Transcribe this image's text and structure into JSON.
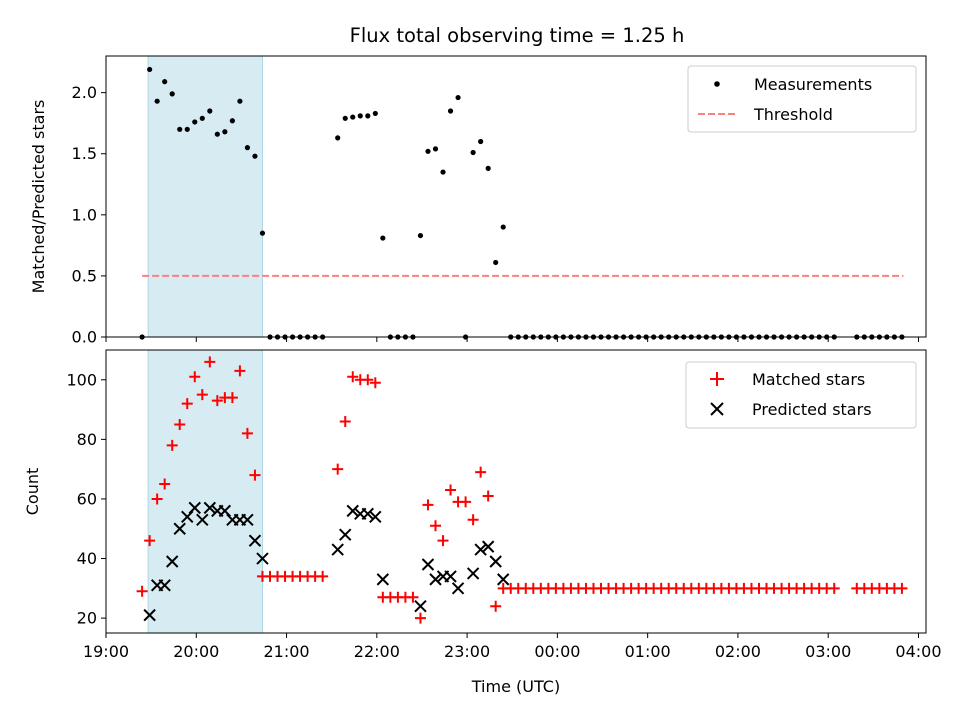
{
  "title": "Flux total observing time = 1.25 h",
  "colors": {
    "measurement": "#000000",
    "threshold": "#ff7f7f",
    "matched": "#ff0000",
    "predicted": "#000000",
    "shade": "#add8e6"
  },
  "chart_data": [
    {
      "type": "scatter",
      "panel": "top",
      "ylabel": "Matched/Predicted stars",
      "ylim": [
        0,
        2.3
      ],
      "yticks": [
        "0.0",
        "0.5",
        "1.0",
        "1.5",
        "2.0"
      ],
      "xlim": [
        "19:00",
        "04:05"
      ],
      "legend": {
        "placement": "top-right",
        "entries": [
          "Measurements",
          "Threshold"
        ]
      },
      "shaded_interval": [
        "19:28",
        "20:44"
      ],
      "threshold": {
        "name": "Threshold",
        "value": 0.5,
        "x_range": [
          "19:24",
          "03:50"
        ]
      },
      "series": [
        {
          "name": "Measurements",
          "points": [
            [
              "19:24",
              0.0
            ],
            [
              "19:29",
              2.19
            ],
            [
              "19:34",
              1.93
            ],
            [
              "19:39",
              2.09
            ],
            [
              "19:44",
              1.99
            ],
            [
              "19:49",
              1.7
            ],
            [
              "19:54",
              1.7
            ],
            [
              "19:59",
              1.76
            ],
            [
              "20:04",
              1.79
            ],
            [
              "20:09",
              1.85
            ],
            [
              "20:14",
              1.66
            ],
            [
              "20:19",
              1.68
            ],
            [
              "20:24",
              1.77
            ],
            [
              "20:29",
              1.93
            ],
            [
              "20:34",
              1.55
            ],
            [
              "20:39",
              1.48
            ],
            [
              "20:44",
              0.85
            ],
            [
              "20:49",
              0.0
            ],
            [
              "20:54",
              0.0
            ],
            [
              "20:59",
              0.0
            ],
            [
              "21:04",
              0.0
            ],
            [
              "21:09",
              0.0
            ],
            [
              "21:14",
              0.0
            ],
            [
              "21:19",
              0.0
            ],
            [
              "21:24",
              0.0
            ],
            [
              "21:34",
              1.63
            ],
            [
              "21:39",
              1.79
            ],
            [
              "21:44",
              1.8
            ],
            [
              "21:49",
              1.81
            ],
            [
              "21:54",
              1.81
            ],
            [
              "21:59",
              1.83
            ],
            [
              "22:04",
              0.81
            ],
            [
              "22:09",
              0.0
            ],
            [
              "22:14",
              0.0
            ],
            [
              "22:19",
              0.0
            ],
            [
              "22:24",
              0.0
            ],
            [
              "22:29",
              0.83
            ],
            [
              "22:34",
              1.52
            ],
            [
              "22:39",
              1.54
            ],
            [
              "22:44",
              1.35
            ],
            [
              "22:49",
              1.85
            ],
            [
              "22:54",
              1.96
            ],
            [
              "22:59",
              0.0
            ],
            [
              "23:04",
              1.51
            ],
            [
              "23:09",
              1.6
            ],
            [
              "23:14",
              1.38
            ],
            [
              "23:19",
              0.61
            ],
            [
              "23:24",
              0.9
            ],
            [
              "23:29",
              0.0
            ],
            [
              "23:34",
              0.0
            ],
            [
              "23:39",
              0.0
            ],
            [
              "23:44",
              0.0
            ],
            [
              "23:49",
              0.0
            ],
            [
              "23:54",
              0.0
            ],
            [
              "23:59",
              0.0
            ],
            [
              "00:04",
              0.0
            ],
            [
              "00:09",
              0.0
            ],
            [
              "00:14",
              0.0
            ],
            [
              "00:19",
              0.0
            ],
            [
              "00:24",
              0.0
            ],
            [
              "00:29",
              0.0
            ],
            [
              "00:34",
              0.0
            ],
            [
              "00:39",
              0.0
            ],
            [
              "00:44",
              0.0
            ],
            [
              "00:49",
              0.0
            ],
            [
              "00:54",
              0.0
            ],
            [
              "00:59",
              0.0
            ],
            [
              "01:04",
              0.0
            ],
            [
              "01:09",
              0.0
            ],
            [
              "01:14",
              0.0
            ],
            [
              "01:19",
              0.0
            ],
            [
              "01:24",
              0.0
            ],
            [
              "01:29",
              0.0
            ],
            [
              "01:34",
              0.0
            ],
            [
              "01:39",
              0.0
            ],
            [
              "01:44",
              0.0
            ],
            [
              "01:49",
              0.0
            ],
            [
              "01:54",
              0.0
            ],
            [
              "01:59",
              0.0
            ],
            [
              "02:04",
              0.0
            ],
            [
              "02:09",
              0.0
            ],
            [
              "02:14",
              0.0
            ],
            [
              "02:19",
              0.0
            ],
            [
              "02:24",
              0.0
            ],
            [
              "02:29",
              0.0
            ],
            [
              "02:34",
              0.0
            ],
            [
              "02:39",
              0.0
            ],
            [
              "02:44",
              0.0
            ],
            [
              "02:49",
              0.0
            ],
            [
              "02:54",
              0.0
            ],
            [
              "02:59",
              0.0
            ],
            [
              "03:04",
              0.0
            ],
            [
              "03:19",
              0.0
            ],
            [
              "03:24",
              0.0
            ],
            [
              "03:29",
              0.0
            ],
            [
              "03:34",
              0.0
            ],
            [
              "03:39",
              0.0
            ],
            [
              "03:44",
              0.0
            ],
            [
              "03:49",
              0.0
            ]
          ]
        }
      ]
    },
    {
      "type": "scatter",
      "panel": "bottom",
      "ylabel": "Count",
      "xlabel": "Time (UTC)",
      "ylim": [
        15,
        110
      ],
      "yticks": [
        "20",
        "40",
        "60",
        "80",
        "100"
      ],
      "xlim": [
        "19:00",
        "04:05"
      ],
      "xticks": [
        "19:00",
        "20:00",
        "21:00",
        "22:00",
        "23:00",
        "00:00",
        "01:00",
        "02:00",
        "03:00",
        "04:00"
      ],
      "legend": {
        "placement": "top-right",
        "entries": [
          "Matched stars",
          "Predicted stars"
        ]
      },
      "shaded_interval": [
        "19:28",
        "20:44"
      ],
      "series": [
        {
          "name": "Matched stars",
          "marker": "plus",
          "points": [
            [
              "19:24",
              29
            ],
            [
              "19:29",
              46
            ],
            [
              "19:34",
              60
            ],
            [
              "19:39",
              65
            ],
            [
              "19:44",
              78
            ],
            [
              "19:49",
              85
            ],
            [
              "19:54",
              92
            ],
            [
              "19:59",
              101
            ],
            [
              "20:04",
              95
            ],
            [
              "20:09",
              106
            ],
            [
              "20:14",
              93
            ],
            [
              "20:19",
              94
            ],
            [
              "20:24",
              94
            ],
            [
              "20:29",
              103
            ],
            [
              "20:34",
              82
            ],
            [
              "20:39",
              68
            ],
            [
              "20:44",
              34
            ],
            [
              "20:49",
              34
            ],
            [
              "20:54",
              34
            ],
            [
              "20:59",
              34
            ],
            [
              "21:04",
              34
            ],
            [
              "21:09",
              34
            ],
            [
              "21:14",
              34
            ],
            [
              "21:19",
              34
            ],
            [
              "21:24",
              34
            ],
            [
              "21:34",
              70
            ],
            [
              "21:39",
              86
            ],
            [
              "21:44",
              101
            ],
            [
              "21:49",
              100
            ],
            [
              "21:54",
              100
            ],
            [
              "21:59",
              99
            ],
            [
              "22:04",
              27
            ],
            [
              "22:09",
              27
            ],
            [
              "22:14",
              27
            ],
            [
              "22:19",
              27
            ],
            [
              "22:24",
              27
            ],
            [
              "22:29",
              20
            ],
            [
              "22:34",
              58
            ],
            [
              "22:39",
              51
            ],
            [
              "22:44",
              46
            ],
            [
              "22:49",
              63
            ],
            [
              "22:54",
              59
            ],
            [
              "22:59",
              59
            ],
            [
              "23:04",
              53
            ],
            [
              "23:09",
              69
            ],
            [
              "23:14",
              61
            ],
            [
              "23:19",
              24
            ],
            [
              "23:24",
              30
            ],
            [
              "23:29",
              30
            ],
            [
              "23:34",
              30
            ],
            [
              "23:39",
              30
            ],
            [
              "23:44",
              30
            ],
            [
              "23:49",
              30
            ],
            [
              "23:54",
              30
            ],
            [
              "23:59",
              30
            ],
            [
              "00:04",
              30
            ],
            [
              "00:09",
              30
            ],
            [
              "00:14",
              30
            ],
            [
              "00:19",
              30
            ],
            [
              "00:24",
              30
            ],
            [
              "00:29",
              30
            ],
            [
              "00:34",
              30
            ],
            [
              "00:39",
              30
            ],
            [
              "00:44",
              30
            ],
            [
              "00:49",
              30
            ],
            [
              "00:54",
              30
            ],
            [
              "00:59",
              30
            ],
            [
              "01:04",
              30
            ],
            [
              "01:09",
              30
            ],
            [
              "01:14",
              30
            ],
            [
              "01:19",
              30
            ],
            [
              "01:24",
              30
            ],
            [
              "01:29",
              30
            ],
            [
              "01:34",
              30
            ],
            [
              "01:39",
              30
            ],
            [
              "01:44",
              30
            ],
            [
              "01:49",
              30
            ],
            [
              "01:54",
              30
            ],
            [
              "01:59",
              30
            ],
            [
              "02:04",
              30
            ],
            [
              "02:09",
              30
            ],
            [
              "02:14",
              30
            ],
            [
              "02:19",
              30
            ],
            [
              "02:24",
              30
            ],
            [
              "02:29",
              30
            ],
            [
              "02:34",
              30
            ],
            [
              "02:39",
              30
            ],
            [
              "02:44",
              30
            ],
            [
              "02:49",
              30
            ],
            [
              "02:54",
              30
            ],
            [
              "02:59",
              30
            ],
            [
              "03:04",
              30
            ],
            [
              "03:19",
              30
            ],
            [
              "03:24",
              30
            ],
            [
              "03:29",
              30
            ],
            [
              "03:34",
              30
            ],
            [
              "03:39",
              30
            ],
            [
              "03:44",
              30
            ],
            [
              "03:49",
              30
            ]
          ]
        },
        {
          "name": "Predicted stars",
          "marker": "x",
          "points": [
            [
              "19:29",
              21
            ],
            [
              "19:34",
              31
            ],
            [
              "19:39",
              31
            ],
            [
              "19:44",
              39
            ],
            [
              "19:49",
              50
            ],
            [
              "19:54",
              54
            ],
            [
              "19:59",
              57
            ],
            [
              "20:04",
              53
            ],
            [
              "20:09",
              57
            ],
            [
              "20:14",
              56
            ],
            [
              "20:19",
              56
            ],
            [
              "20:24",
              53
            ],
            [
              "20:29",
              53
            ],
            [
              "20:34",
              53
            ],
            [
              "20:39",
              46
            ],
            [
              "20:44",
              40
            ],
            [
              "21:34",
              43
            ],
            [
              "21:39",
              48
            ],
            [
              "21:44",
              56
            ],
            [
              "21:49",
              55
            ],
            [
              "21:54",
              55
            ],
            [
              "21:59",
              54
            ],
            [
              "22:04",
              33
            ],
            [
              "22:29",
              24
            ],
            [
              "22:34",
              38
            ],
            [
              "22:39",
              33
            ],
            [
              "22:44",
              34
            ],
            [
              "22:49",
              34
            ],
            [
              "22:54",
              30
            ],
            [
              "23:04",
              35
            ],
            [
              "23:09",
              43
            ],
            [
              "23:14",
              44
            ],
            [
              "23:19",
              39
            ],
            [
              "23:24",
              33
            ]
          ]
        }
      ]
    }
  ]
}
